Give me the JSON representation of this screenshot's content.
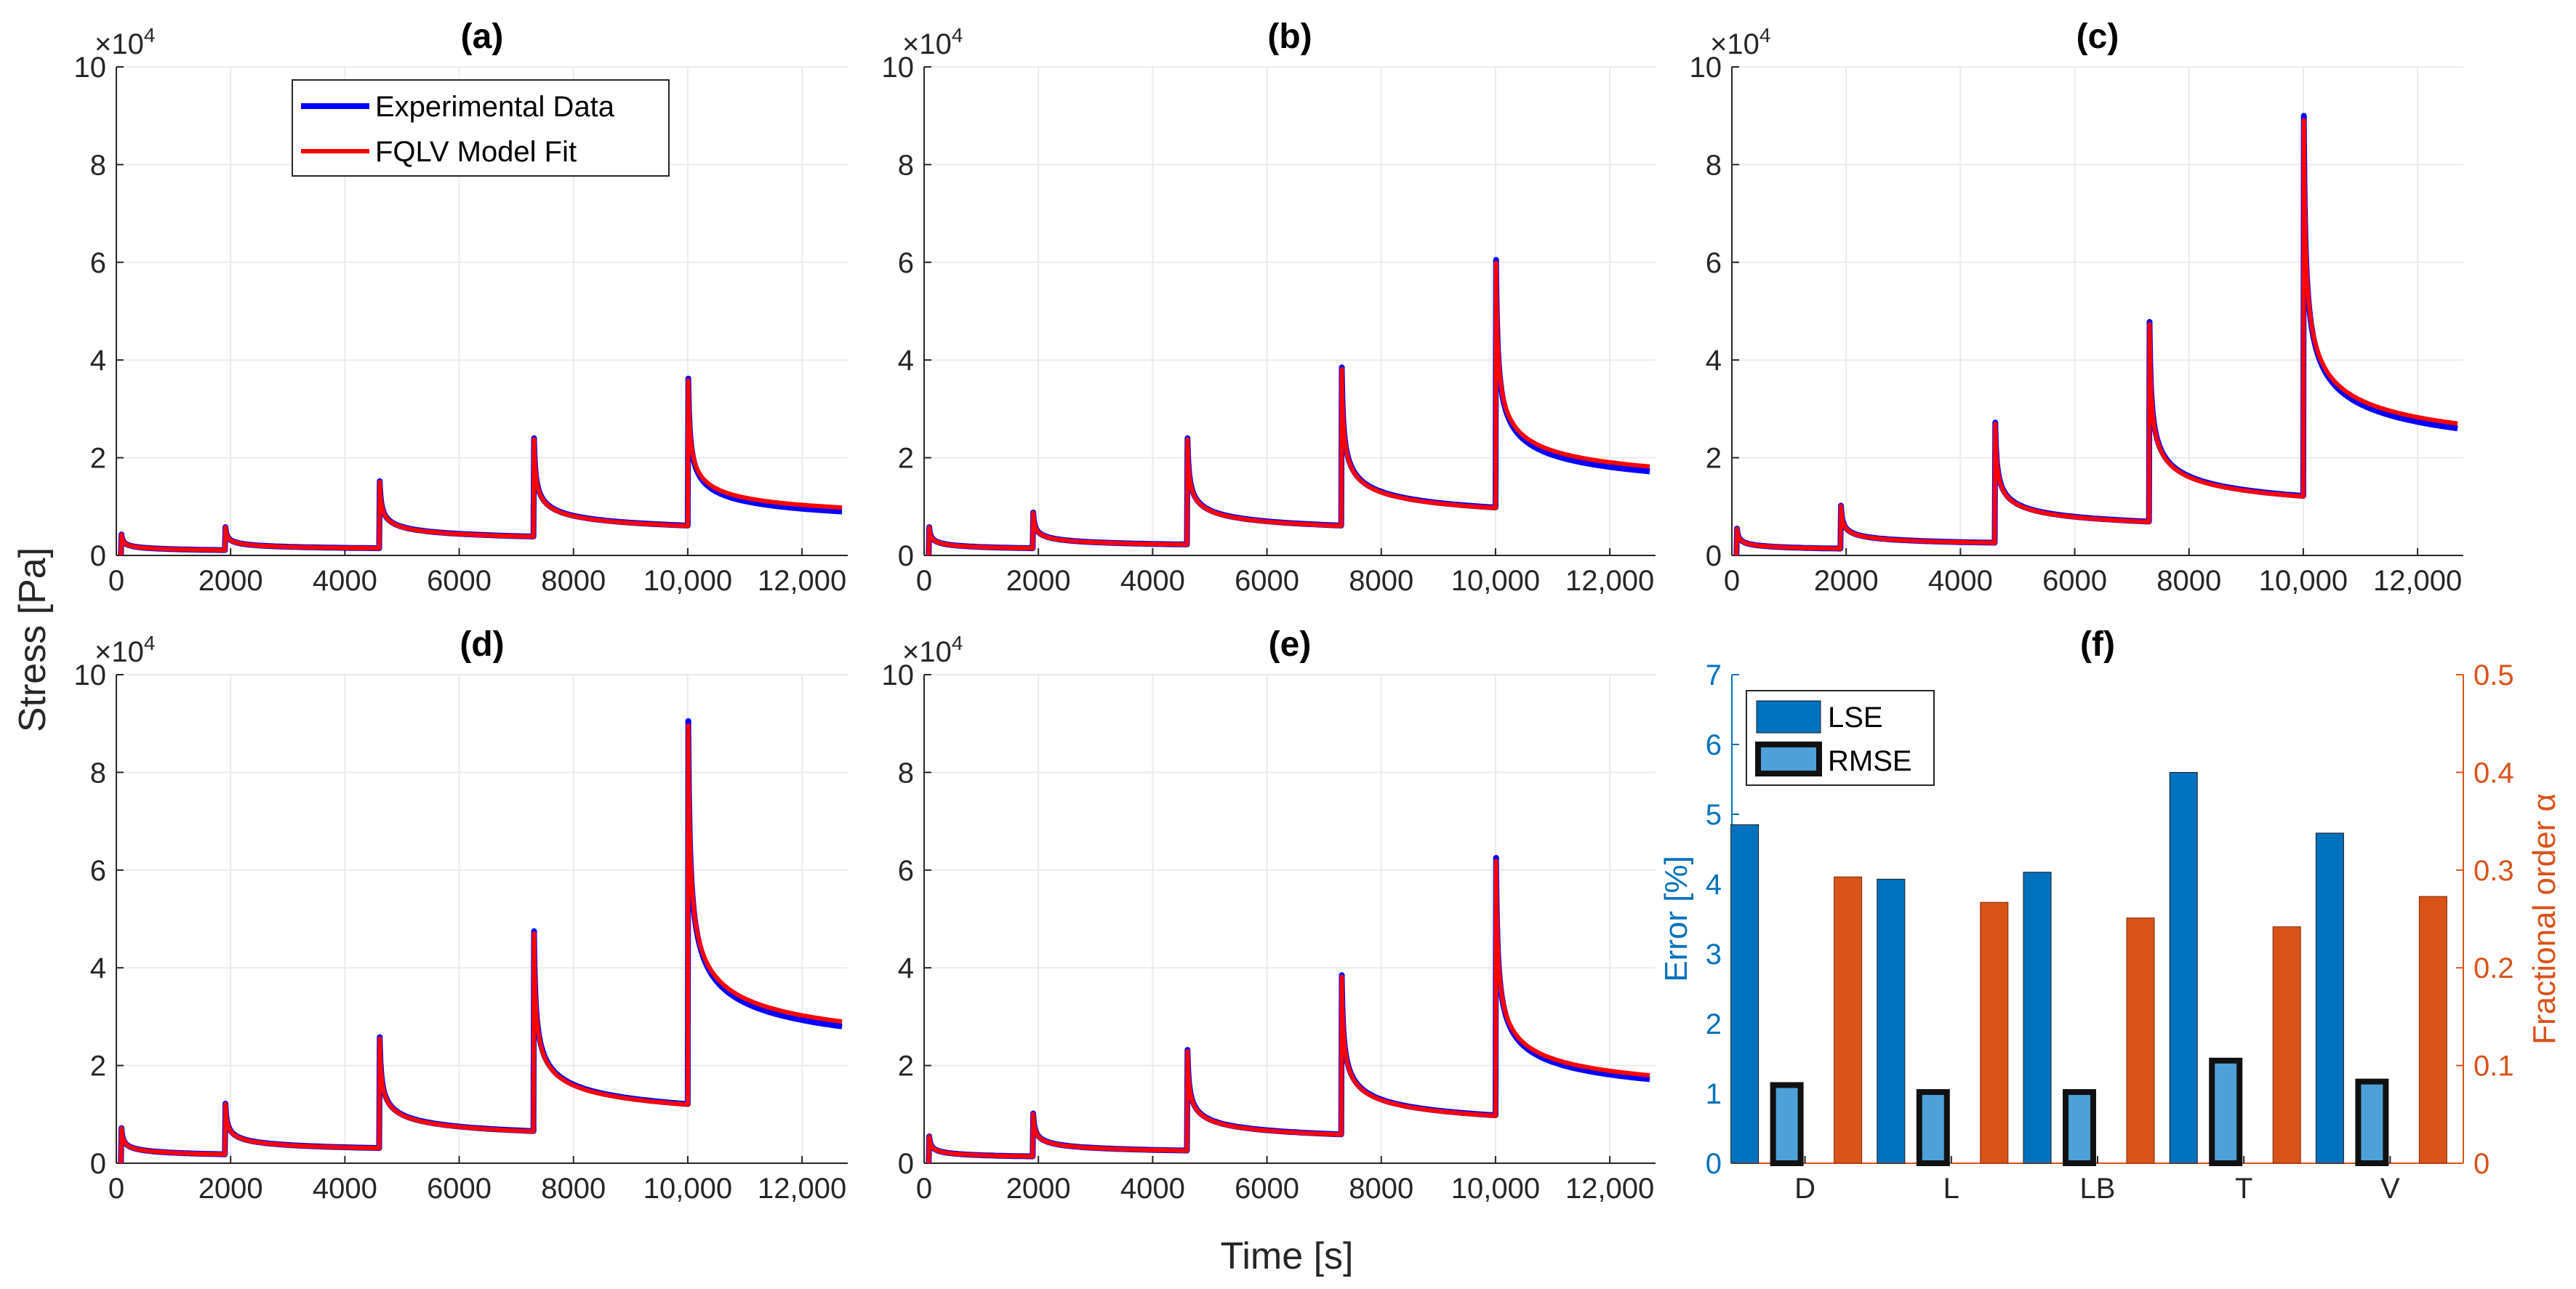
{
  "chart_data": [
    {
      "type": "line",
      "title": "(a)",
      "xlabel": "Time [s]",
      "ylabel": "Stress [Pa]",
      "xlim": [
        0,
        12800
      ],
      "ylim": [
        0,
        10
      ],
      "yscale_label": "×10^4",
      "xticks": [
        "0",
        "2000",
        "4000",
        "6000",
        "8000",
        "10,000",
        "12,000"
      ],
      "yticks": [
        "0",
        "2",
        "4",
        "6",
        "8",
        "10"
      ],
      "legend": [
        "Experimental Data",
        "FQLV Model Fit"
      ],
      "peaks": [
        4.3,
        5.8,
        15.2,
        24.0,
        36.2
      ],
      "step_times": [
        80,
        1900,
        4600,
        7300,
        10000
      ],
      "end_exp": 9.0,
      "end_fit": 9.8,
      "series_colors": {
        "exp": "#0000ff",
        "fit": "#ff0000"
      }
    },
    {
      "type": "line",
      "title": "(b)",
      "xlim": [
        0,
        12800
      ],
      "ylim": [
        0,
        10
      ],
      "yscale_label": "×10^4",
      "xticks": [
        "0",
        "2000",
        "4000",
        "6000",
        "8000",
        "10,000",
        "12,000"
      ],
      "yticks": [
        "0",
        "2",
        "4",
        "6",
        "8",
        "10"
      ],
      "peaks": [
        5.8,
        8.8,
        24.0,
        38.5,
        60.5
      ],
      "step_times": [
        80,
        1900,
        4600,
        7300,
        10000
      ],
      "end_exp": 17.2,
      "end_fit": 18.2
    },
    {
      "type": "line",
      "title": "(c)",
      "xlim": [
        0,
        12800
      ],
      "ylim": [
        0,
        10
      ],
      "yscale_label": "×10^4",
      "xticks": [
        "0",
        "2000",
        "4000",
        "6000",
        "8000",
        "10,000",
        "12,000"
      ],
      "yticks": [
        "0",
        "2",
        "4",
        "6",
        "8",
        "10"
      ],
      "peaks": [
        5.5,
        10.2,
        27.2,
        47.8,
        90.0
      ],
      "step_times": [
        80,
        1900,
        4600,
        7300,
        10000
      ],
      "end_exp": 26.0,
      "end_fit": 27.0
    },
    {
      "type": "line",
      "title": "(d)",
      "xlim": [
        0,
        12800
      ],
      "ylim": [
        0,
        10
      ],
      "yscale_label": "×10^4",
      "xticks": [
        "0",
        "2000",
        "4000",
        "6000",
        "8000",
        "10,000",
        "12,000"
      ],
      "yticks": [
        "0",
        "2",
        "4",
        "6",
        "8",
        "10"
      ],
      "peaks": [
        7.2,
        12.2,
        25.8,
        47.5,
        90.5
      ],
      "step_times": [
        80,
        1900,
        4600,
        7300,
        10000
      ],
      "end_exp": 28.0,
      "end_fit": 29.0
    },
    {
      "type": "line",
      "title": "(e)",
      "xlim": [
        0,
        12800
      ],
      "ylim": [
        0,
        10
      ],
      "yscale_label": "×10^4",
      "xticks": [
        "0",
        "2000",
        "4000",
        "6000",
        "8000",
        "10,000",
        "12,000"
      ],
      "yticks": [
        "0",
        "2",
        "4",
        "6",
        "8",
        "10"
      ],
      "peaks": [
        5.5,
        10.2,
        23.2,
        38.5,
        62.5
      ],
      "step_times": [
        80,
        1900,
        4600,
        7300,
        10000
      ],
      "end_exp": 17.2,
      "end_fit": 18.0
    },
    {
      "type": "bar",
      "title": "(f)",
      "categories": [
        "D",
        "L",
        "LB",
        "T",
        "V"
      ],
      "ylabel_left": "Error [%]",
      "ylabel_right": "Fractional order α",
      "ylim_left": [
        0,
        7
      ],
      "ylim_right": [
        0,
        0.5
      ],
      "yticks_left": [
        "0",
        "1",
        "2",
        "3",
        "4",
        "5",
        "6",
        "7"
      ],
      "yticks_right": [
        "0",
        "0.1",
        "0.2",
        "0.3",
        "0.4",
        "0.5"
      ],
      "legend": [
        "LSE",
        "RMSE"
      ],
      "series": [
        {
          "name": "LSE",
          "axis": "left",
          "values": [
            4.85,
            4.07,
            4.17,
            5.6,
            4.73
          ],
          "color": "#0072bd"
        },
        {
          "name": "RMSE",
          "axis": "left",
          "values": [
            1.12,
            1.02,
            1.02,
            1.47,
            1.17
          ],
          "color": "#4da0d8"
        },
        {
          "name": "Fractional order α",
          "axis": "right",
          "values": [
            0.293,
            0.267,
            0.251,
            0.242,
            0.273
          ],
          "color": "#d95319"
        }
      ]
    }
  ],
  "shared": {
    "xlabel": "Time [s]",
    "ylabel": "Stress [Pa]"
  }
}
